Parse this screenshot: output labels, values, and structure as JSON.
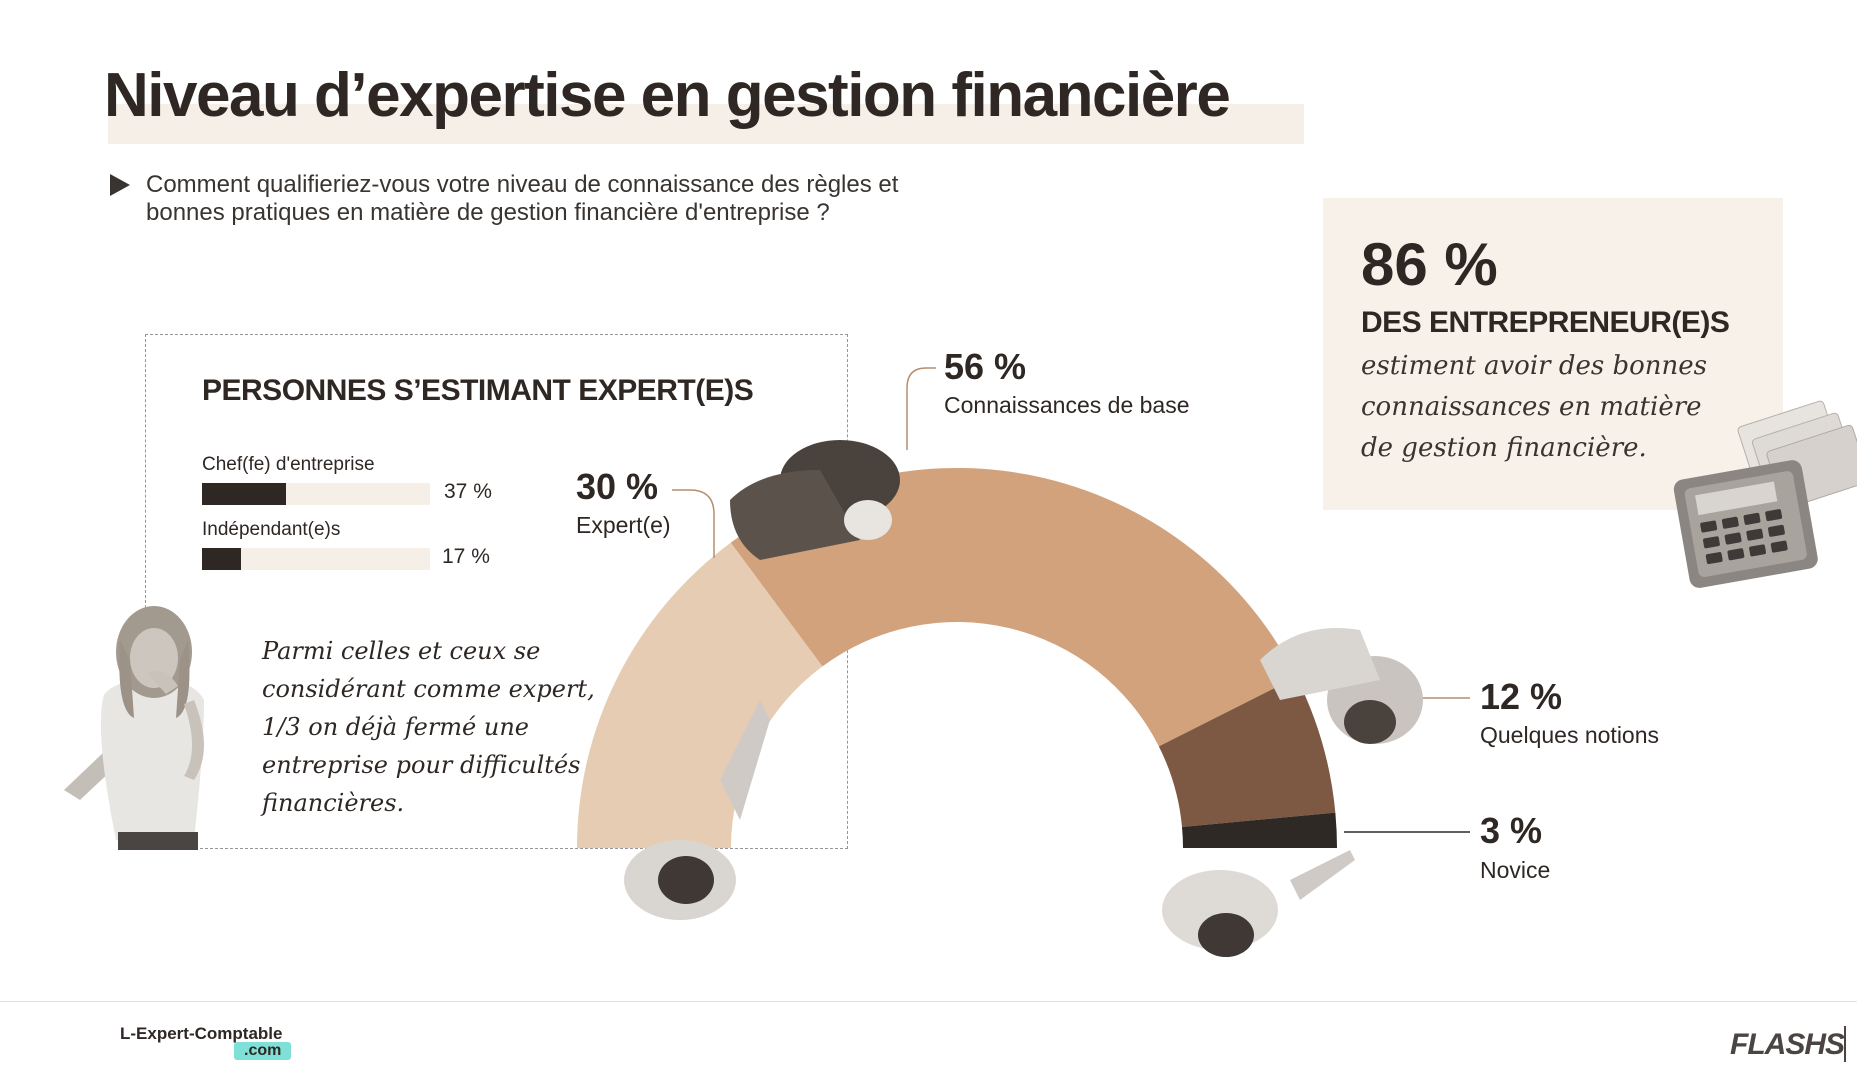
{
  "title": "Niveau d’expertise en gestion financière",
  "question": "Comment qualifieriez-vous votre niveau de connaissance des règles et bonnes pratiques en matière de gestion financière d'entreprise ?",
  "expert_box": {
    "title": "PERSONNES S’ESTIMANT EXPERT(E)S",
    "bars": [
      {
        "label": "Chef(fe) d'entreprise",
        "value": 37,
        "value_label": "37 %"
      },
      {
        "label": "Indépendant(e)s",
        "value": 17,
        "value_label": "17 %"
      }
    ],
    "note": "Parmi celles et ceux se considérant comme expert, 1/3 on déjà fermé une entreprise pour difficultés financières."
  },
  "highlight": {
    "pct": "86 %",
    "heading": "DES ENTREPRENEUR(E)S",
    "desc": "estiment avoir des bonnes connaissances en matière de gestion financière."
  },
  "chart_data": {
    "type": "pie",
    "variant": "half-donut",
    "categories": [
      "Expert(e)",
      "Connaissances de base",
      "Quelques notions",
      "Novice"
    ],
    "values": [
      30,
      56,
      12,
      3
    ],
    "value_labels": [
      "30 %",
      "56 %",
      "12 %",
      "3 %"
    ],
    "colors": [
      "#e6ccb3",
      "#d1a27c",
      "#7d5943",
      "#2f2925"
    ]
  },
  "footer": {
    "brand": "L-Expert-Comptable",
    "brand_suffix": ".com",
    "logo": "FLASHS"
  }
}
